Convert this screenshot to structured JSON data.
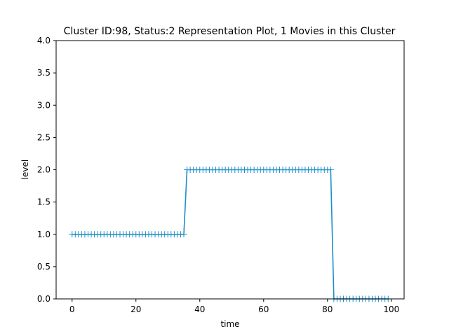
{
  "chart_data": {
    "type": "line",
    "title": "Cluster ID:98, Status:2 Representation Plot, 1 Movies in this Cluster",
    "xlabel": "time",
    "ylabel": "level",
    "xlim": [
      -5,
      104
    ],
    "ylim": [
      0.0,
      4.0
    ],
    "xticks": [
      0,
      20,
      40,
      60,
      80,
      100
    ],
    "xtick_labels": [
      "0",
      "20",
      "40",
      "60",
      "80",
      "100"
    ],
    "yticks": [
      0.0,
      0.5,
      1.0,
      1.5,
      2.0,
      2.5,
      3.0,
      3.5,
      4.0
    ],
    "ytick_labels": [
      "0.0",
      "0.5",
      "1.0",
      "1.5",
      "2.0",
      "2.5",
      "3.0",
      "3.5",
      "4.0"
    ],
    "grid": false,
    "series": [
      {
        "color": "#1b8fc9",
        "marker": "+",
        "segments": [
          {
            "x_start": 0,
            "x_end": 35,
            "y": 1.0
          },
          {
            "x_start": 36,
            "x_end": 81,
            "y": 2.0
          },
          {
            "x_start": 82,
            "x_end": 99,
            "y": 0.0
          }
        ]
      }
    ]
  }
}
